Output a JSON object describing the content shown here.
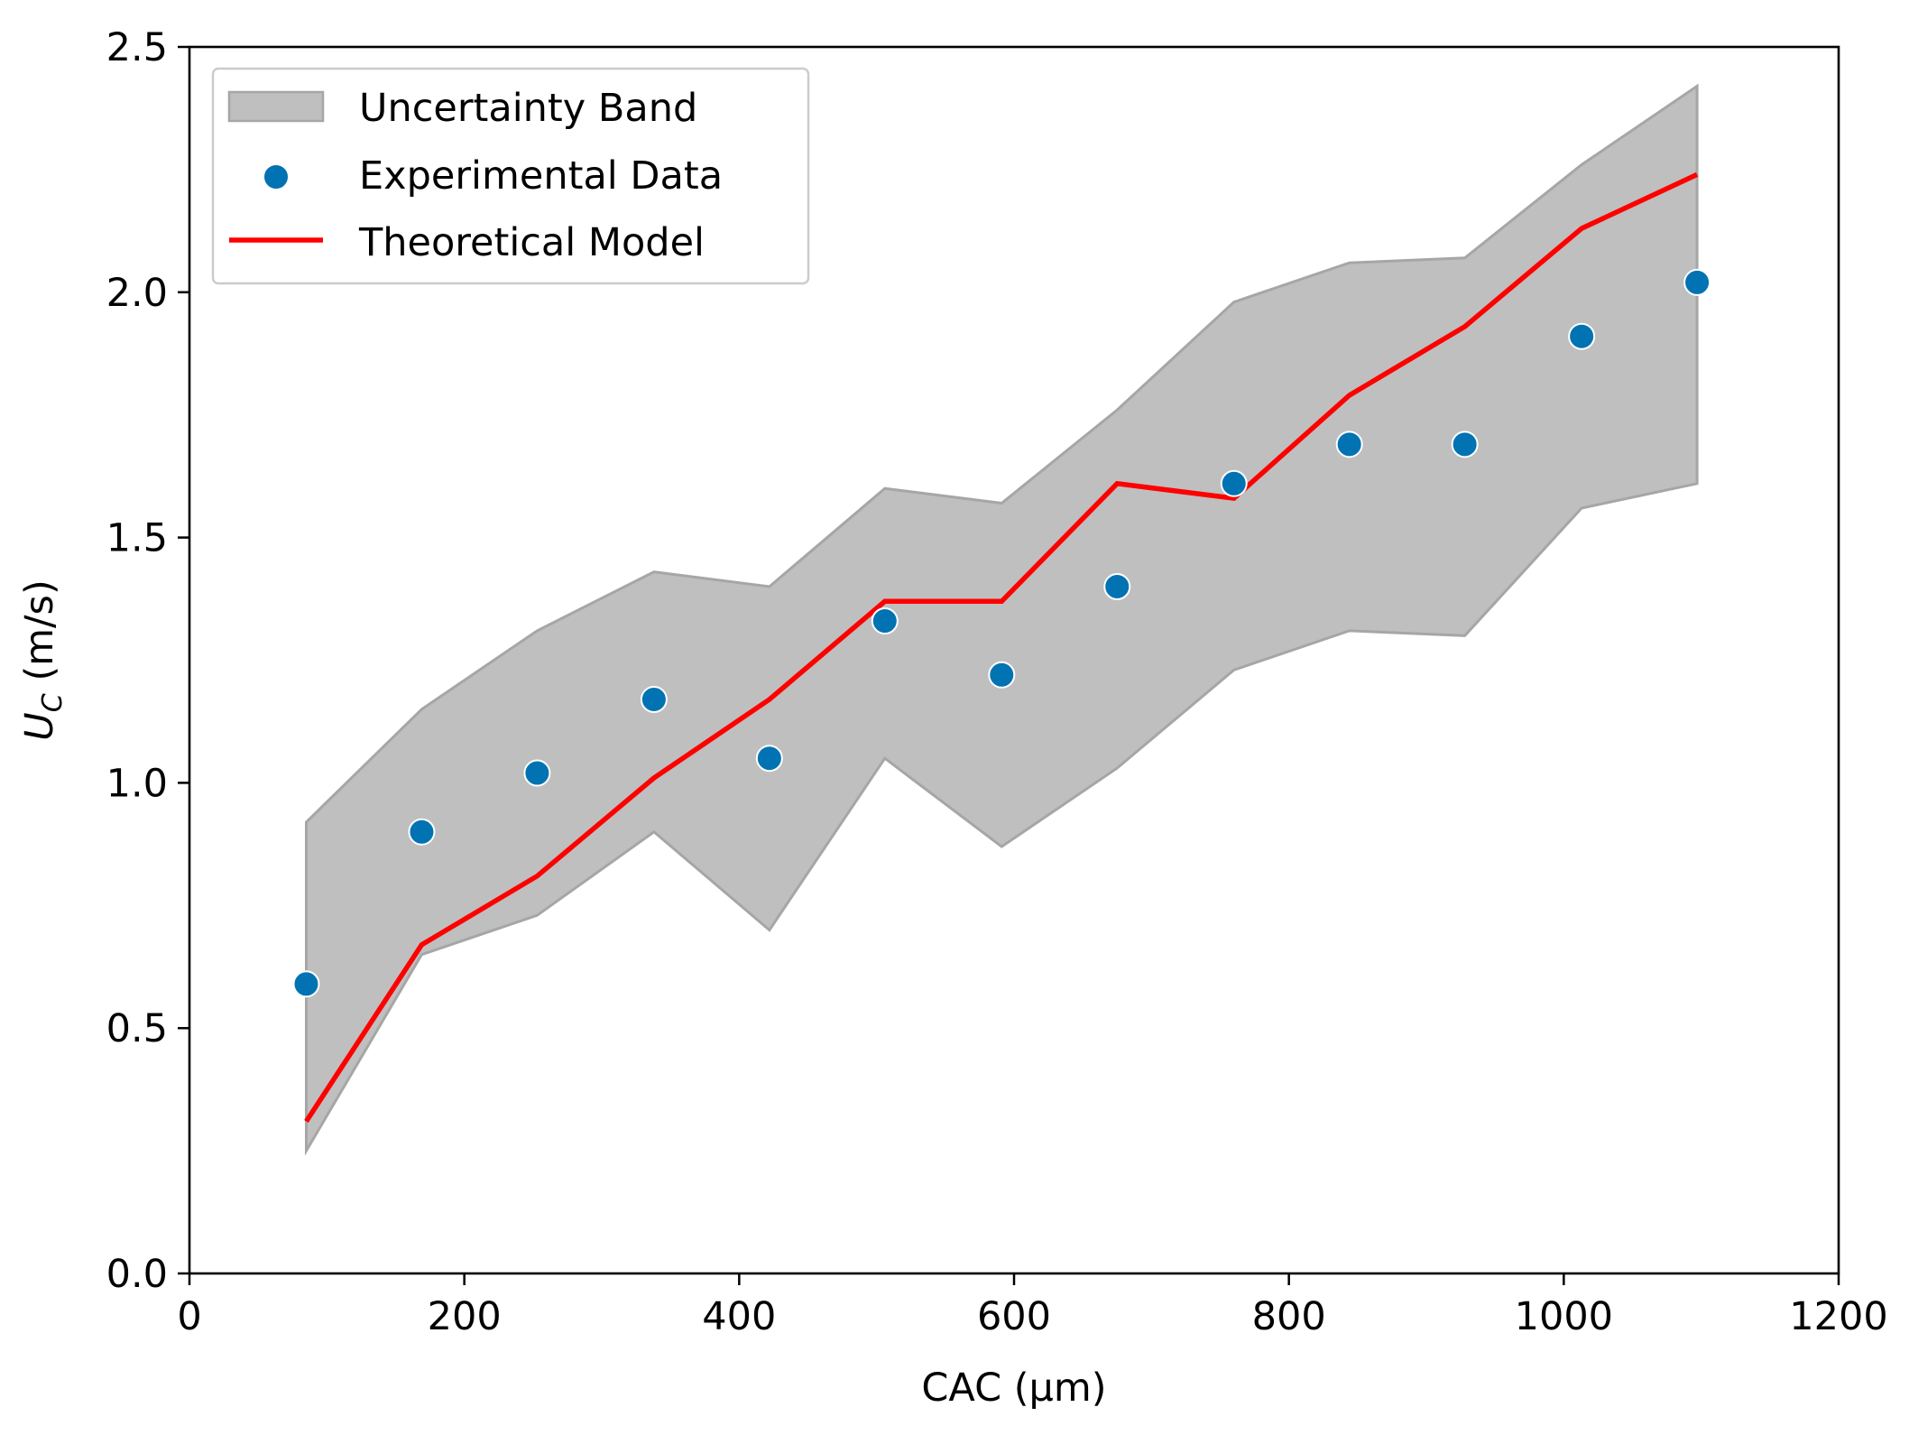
{
  "chart_data": {
    "type": "line",
    "xlabel": "CAC (μm)",
    "ylabel": "U_C (m/s)",
    "ylabel_main": "U",
    "ylabel_sub": "C",
    "ylabel_unit": " (m/s)",
    "xlim": [
      0,
      1200
    ],
    "ylim": [
      0,
      2.5
    ],
    "xticks": [
      0,
      200,
      400,
      600,
      800,
      1000,
      1200
    ],
    "xtick_labels": [
      "0",
      "200",
      "400",
      "600",
      "800",
      "1000",
      "1200"
    ],
    "yticks": [
      0,
      0.5,
      1.0,
      1.5,
      2.0,
      2.5
    ],
    "ytick_labels": [
      "0.0",
      "0.5",
      "1.0",
      "1.5",
      "2.0",
      "2.5"
    ],
    "grid": false,
    "legend_position": "top-left",
    "band": {
      "name": "Uncertainty Band",
      "x": [
        85,
        169,
        253,
        338,
        422,
        506,
        591,
        675,
        760,
        844,
        928,
        1013,
        1097
      ],
      "upper": [
        0.92,
        1.15,
        1.31,
        1.43,
        1.4,
        1.6,
        1.57,
        1.76,
        1.98,
        2.06,
        2.07,
        2.26,
        2.42
      ],
      "lower": [
        0.25,
        0.65,
        0.73,
        0.9,
        0.7,
        1.05,
        0.87,
        1.03,
        1.23,
        1.31,
        1.3,
        1.56,
        1.61
      ],
      "color": "#bfbfbf"
    },
    "series": [
      {
        "name": "Experimental Data",
        "kind": "scatter",
        "color": "#0173b2",
        "x": [
          85,
          169,
          253,
          338,
          422,
          506,
          591,
          675,
          760,
          844,
          928,
          1013,
          1097
        ],
        "y": [
          0.59,
          0.9,
          1.02,
          1.17,
          1.05,
          1.33,
          1.22,
          1.4,
          1.61,
          1.69,
          1.69,
          1.91,
          2.02
        ]
      },
      {
        "name": "Theoretical Model",
        "kind": "line",
        "color": "#ff0000",
        "x": [
          85,
          169,
          253,
          338,
          422,
          506,
          591,
          675,
          760,
          844,
          928,
          1013,
          1097
        ],
        "y": [
          0.31,
          0.67,
          0.81,
          1.01,
          1.17,
          1.37,
          1.37,
          1.61,
          1.58,
          1.79,
          1.93,
          2.13,
          2.24
        ]
      }
    ]
  }
}
